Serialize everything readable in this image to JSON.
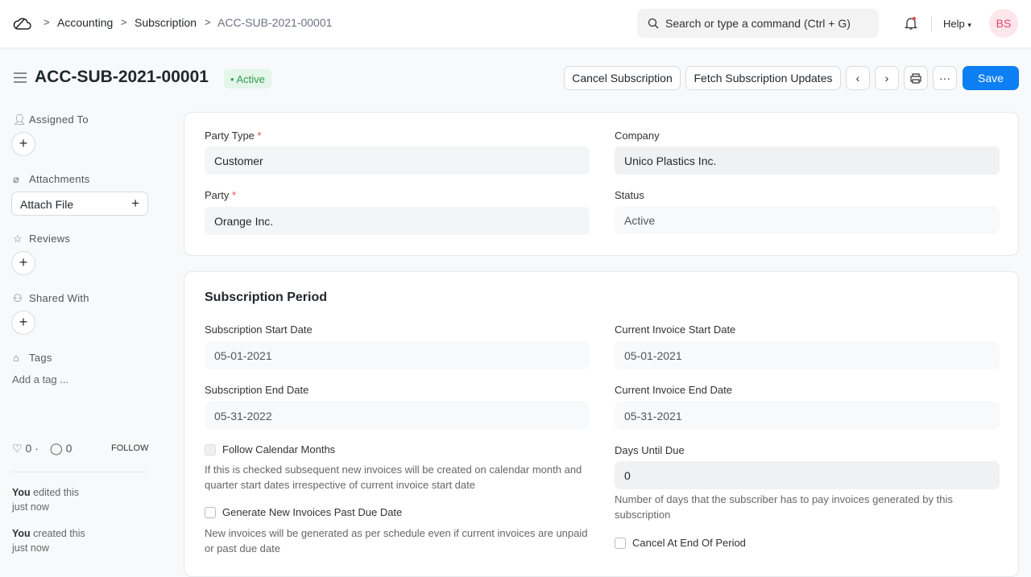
{
  "breadcrumbs": [
    "Accounting",
    "Subscription",
    "ACC-SUB-2021-00001"
  ],
  "search": {
    "placeholder": "Search or type a command (Ctrl + G)"
  },
  "help": "Help",
  "avatar": "BS",
  "doc": {
    "title": "ACC-SUB-2021-00001",
    "status": "Active",
    "status_color": "#2e9e4f"
  },
  "actions": {
    "cancel": "Cancel Subscription",
    "fetch": "Fetch Subscription Updates",
    "save": "Save",
    "more": "···"
  },
  "sidebar": {
    "assigned": "Assigned To",
    "attachments": "Attachments",
    "attach_file": "Attach File",
    "reviews": "Reviews",
    "shared": "Shared With",
    "tags": "Tags",
    "add_tag": "Add a tag ...",
    "likes": "0",
    "comments": "0",
    "follow": "FOLLOW",
    "activity": [
      {
        "who": "You",
        "what": " edited this",
        "when": "just now"
      },
      {
        "who": "You",
        "what": " created this",
        "when": "just now"
      }
    ]
  },
  "details": {
    "party_type_label": "Party Type",
    "party_type": "Customer",
    "company_label": "Company",
    "company": "Unico Plastics Inc.",
    "party_label": "Party",
    "party": "Orange Inc.",
    "status_label": "Status",
    "status": "Active"
  },
  "period": {
    "heading": "Subscription Period",
    "start_label": "Subscription Start Date",
    "start": "05-01-2021",
    "cur_start_label": "Current Invoice Start Date",
    "cur_start": "05-01-2021",
    "end_label": "Subscription End Date",
    "end": "05-31-2022",
    "cur_end_label": "Current Invoice End Date",
    "cur_end": "05-31-2021",
    "follow_cal": "Follow Calendar Months",
    "follow_cal_desc": "If this is checked subsequent new invoices will be created on calendar month and quarter start dates irrespective of current invoice start date",
    "days_label": "Days Until Due",
    "days": "0",
    "days_desc": "Number of days that the subscriber has to pay invoices generated by this subscription",
    "gen_past": "Generate New Invoices Past Due Date",
    "gen_past_desc": "New invoices will be generated as per schedule even if current invoices are unpaid or past due date",
    "cancel_end": "Cancel At End Of Period"
  }
}
